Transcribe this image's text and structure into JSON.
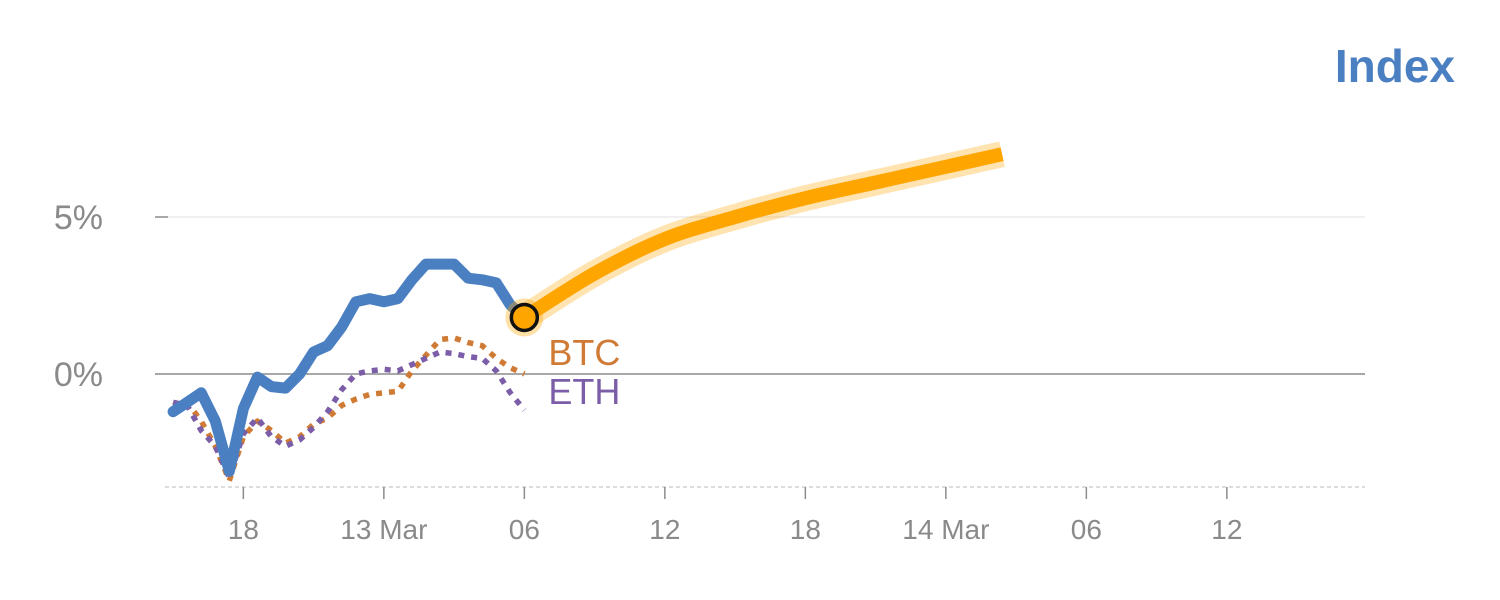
{
  "chart_data": {
    "type": "line",
    "title": "Index",
    "ylim": [
      -3.5,
      8
    ],
    "yticks": [
      {
        "value": 0,
        "label": "0%"
      },
      {
        "value": 5,
        "label": "5%"
      }
    ],
    "x_range": [
      0,
      84
    ],
    "xticks": [
      {
        "x": 7,
        "label": "18"
      },
      {
        "x": 17,
        "label": "13 Mar"
      },
      {
        "x": 27,
        "label": "06"
      },
      {
        "x": 37,
        "label": "12"
      },
      {
        "x": 47,
        "label": "18"
      },
      {
        "x": 57,
        "label": "14 Mar"
      },
      {
        "x": 67,
        "label": "06"
      },
      {
        "x": 77,
        "label": "12"
      }
    ],
    "series": [
      {
        "name": "",
        "color": "#4a7fc1",
        "style": "solid",
        "points": [
          [
            2,
            -1.2
          ],
          [
            3,
            -0.9
          ],
          [
            4,
            -0.6
          ],
          [
            5,
            -1.5
          ],
          [
            6,
            -3.1
          ],
          [
            7,
            -1.1
          ],
          [
            8,
            -0.1
          ],
          [
            9,
            -0.4
          ],
          [
            10,
            -0.45
          ],
          [
            11,
            0.0
          ],
          [
            12,
            0.7
          ],
          [
            13,
            0.9
          ],
          [
            14,
            1.5
          ],
          [
            15,
            2.3
          ],
          [
            16,
            2.4
          ],
          [
            17,
            2.3
          ],
          [
            18,
            2.4
          ],
          [
            19,
            3.0
          ],
          [
            20,
            3.5
          ],
          [
            21,
            3.5
          ],
          [
            22,
            3.5
          ],
          [
            23,
            3.05
          ],
          [
            24,
            3.0
          ],
          [
            25,
            2.9
          ],
          [
            26,
            2.2
          ],
          [
            27,
            1.8
          ]
        ]
      },
      {
        "name": "",
        "color": "#ffa500",
        "style": "forecast",
        "points": [
          [
            27,
            1.8
          ],
          [
            32,
            3.2
          ],
          [
            37,
            4.3
          ],
          [
            42,
            5.0
          ],
          [
            47,
            5.6
          ],
          [
            52,
            6.1
          ],
          [
            57,
            6.6
          ],
          [
            61,
            7.0
          ]
        ]
      },
      {
        "name": "BTC",
        "color": "#d07b35",
        "style": "dotted",
        "points": [
          [
            2,
            -1.0
          ],
          [
            3,
            -0.9
          ],
          [
            4,
            -1.5
          ],
          [
            5,
            -2.3
          ],
          [
            6,
            -3.4
          ],
          [
            7,
            -2.0
          ],
          [
            8,
            -1.5
          ],
          [
            9,
            -1.8
          ],
          [
            10,
            -2.2
          ],
          [
            11,
            -2.0
          ],
          [
            12,
            -1.6
          ],
          [
            13,
            -1.4
          ],
          [
            14,
            -1.0
          ],
          [
            15,
            -0.8
          ],
          [
            16,
            -0.65
          ],
          [
            17,
            -0.6
          ],
          [
            18,
            -0.55
          ],
          [
            19,
            0.1
          ],
          [
            20,
            0.6
          ],
          [
            21,
            1.1
          ],
          [
            22,
            1.15
          ],
          [
            23,
            1.0
          ],
          [
            24,
            0.9
          ],
          [
            25,
            0.5
          ],
          [
            26,
            0.2
          ],
          [
            27,
            0.0
          ]
        ]
      },
      {
        "name": "ETH",
        "color": "#7b5ea7",
        "style": "dotted",
        "points": [
          [
            2,
            -0.9
          ],
          [
            3,
            -1.0
          ],
          [
            4,
            -1.8
          ],
          [
            5,
            -2.3
          ],
          [
            6,
            -3.3
          ],
          [
            7,
            -1.9
          ],
          [
            8,
            -1.4
          ],
          [
            9,
            -2.0
          ],
          [
            10,
            -2.3
          ],
          [
            11,
            -2.1
          ],
          [
            12,
            -1.7
          ],
          [
            13,
            -1.2
          ],
          [
            14,
            -0.5
          ],
          [
            15,
            0.0
          ],
          [
            16,
            0.1
          ],
          [
            17,
            0.15
          ],
          [
            18,
            0.1
          ],
          [
            19,
            0.3
          ],
          [
            20,
            0.5
          ],
          [
            21,
            0.7
          ],
          [
            22,
            0.65
          ],
          [
            23,
            0.55
          ],
          [
            24,
            0.5
          ],
          [
            25,
            0.1
          ],
          [
            26,
            -0.6
          ],
          [
            27,
            -1.15
          ]
        ]
      }
    ],
    "marker": {
      "x": 27,
      "y": 1.8
    }
  }
}
